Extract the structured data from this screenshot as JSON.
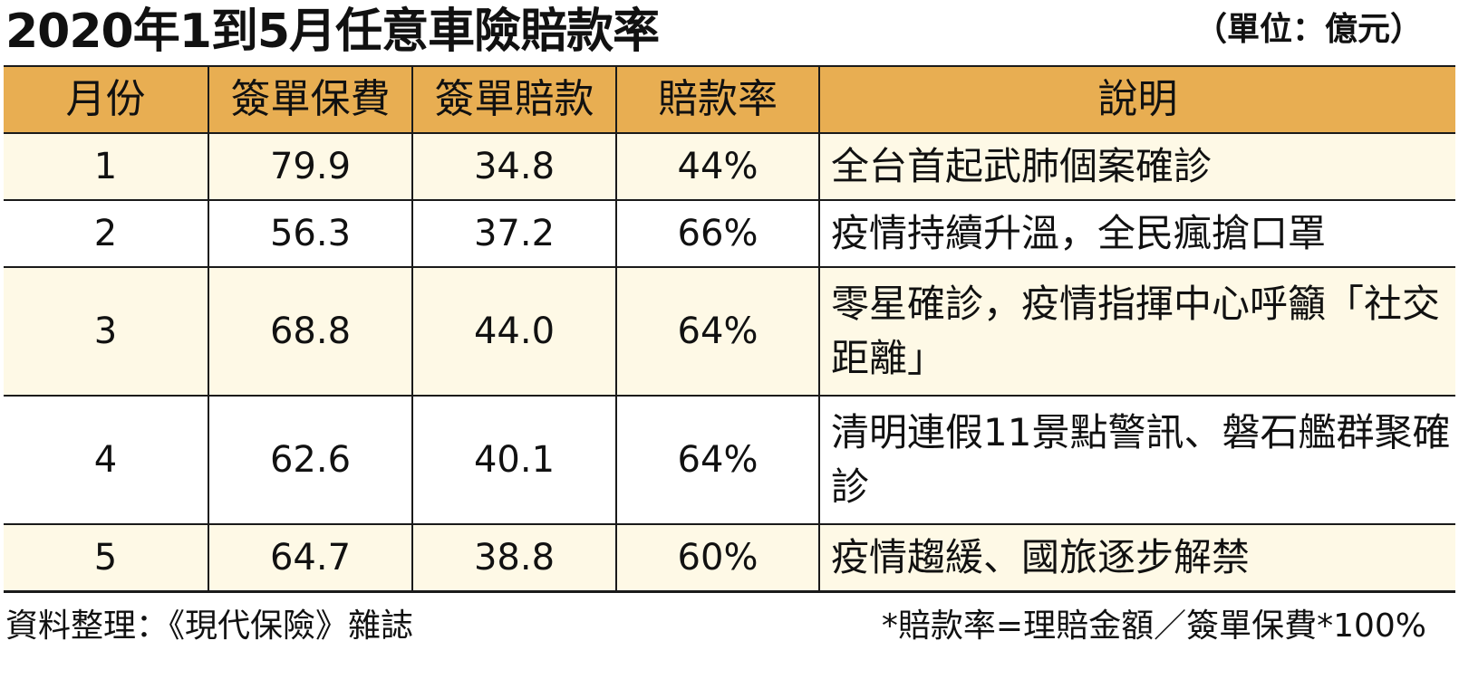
{
  "title": "2020年1到5月任意車險賠款率",
  "unit": "（單位：億元）",
  "table": {
    "headers": [
      "月份",
      "簽單保費",
      "簽單賠款",
      "賠款率",
      "說明"
    ],
    "rows": [
      {
        "month": "1",
        "premium": "79.9",
        "claims": "34.8",
        "rate": "44%",
        "desc": "全台首起武肺個案確診"
      },
      {
        "month": "2",
        "premium": "56.3",
        "claims": "37.2",
        "rate": "66%",
        "desc": "疫情持續升溫，全民瘋搶口罩"
      },
      {
        "month": "3",
        "premium": "68.8",
        "claims": "44.0",
        "rate": "64%",
        "desc": "零星確診，疫情指揮中心呼籲「社交距離」"
      },
      {
        "month": "4",
        "premium": "62.6",
        "claims": "40.1",
        "rate": "64%",
        "desc": "清明連假11景點警訊、磐石艦群聚確診"
      },
      {
        "month": "5",
        "premium": "64.7",
        "claims": "38.8",
        "rate": "60%",
        "desc": "疫情趨緩、國旅逐步解禁"
      }
    ]
  },
  "footer": {
    "source": "資料整理：《現代保險》雜誌",
    "formula": "*賠款率=理賠金額／簽單保費*100%"
  },
  "colors": {
    "header_bg": "#e8ae52",
    "band_bg": "#fef9e6",
    "border": "#1a1a1a"
  }
}
